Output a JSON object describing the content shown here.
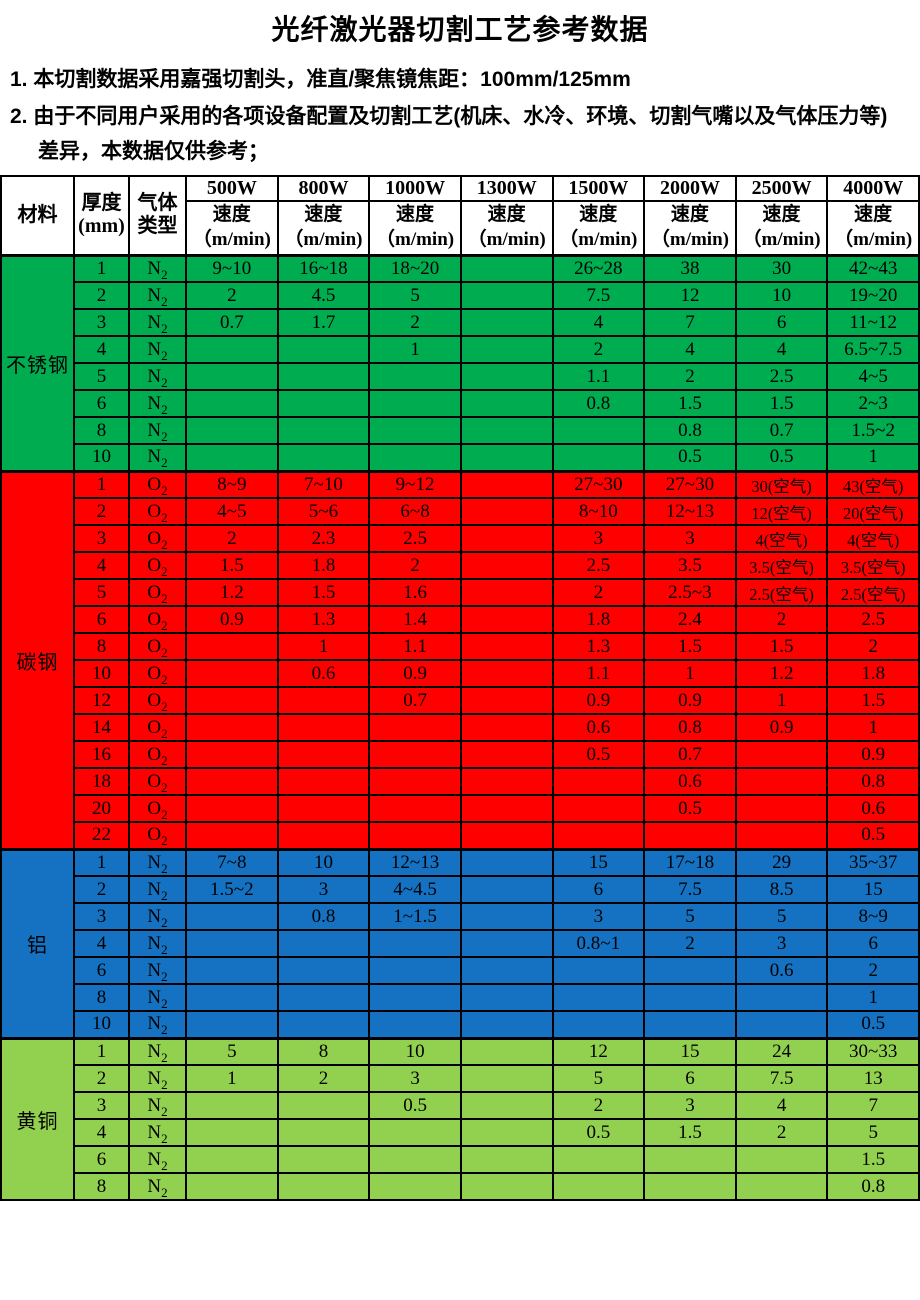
{
  "title": "光纤激光器切割工艺参考数据",
  "notes": [
    "1. 本切割数据采用嘉强切割头，准直/聚焦镜焦距：100mm/125mm",
    "2. 由于不同用户采用的各项设备配置及切割工艺(机床、水冷、环境、切割气嘴以及气体压力等) 差异，本数据仅供参考；"
  ],
  "table": {
    "header": {
      "material": "材料",
      "thickness_line1": "厚度",
      "thickness_line2": "(mm)",
      "gas_line1": "气体",
      "gas_line2": "类型",
      "powers": [
        "500W",
        "800W",
        "1000W",
        "1300W",
        "1500W",
        "2000W",
        "2500W",
        "4000W"
      ],
      "speed_label": "速度",
      "speed_unit": "（m/min)"
    },
    "sections": [
      {
        "material": "不锈钢",
        "color": "#00AC50",
        "gas": "N2",
        "rows": [
          {
            "t": "1",
            "v": [
              "9~10",
              "16~18",
              "18~20",
              "",
              "26~28",
              "38",
              "30",
              "42~43"
            ]
          },
          {
            "t": "2",
            "v": [
              "2",
              "4.5",
              "5",
              "",
              "7.5",
              "12",
              "10",
              "19~20"
            ]
          },
          {
            "t": "3",
            "v": [
              "0.7",
              "1.7",
              "2",
              "",
              "4",
              "7",
              "6",
              "11~12"
            ]
          },
          {
            "t": "4",
            "v": [
              "",
              "",
              "1",
              "",
              "2",
              "4",
              "4",
              "6.5~7.5"
            ]
          },
          {
            "t": "5",
            "v": [
              "",
              "",
              "",
              "",
              "1.1",
              "2",
              "2.5",
              "4~5"
            ]
          },
          {
            "t": "6",
            "v": [
              "",
              "",
              "",
              "",
              "0.8",
              "1.5",
              "1.5",
              "2~3"
            ]
          },
          {
            "t": "8",
            "v": [
              "",
              "",
              "",
              "",
              "",
              "0.8",
              "0.7",
              "1.5~2"
            ]
          },
          {
            "t": "10",
            "v": [
              "",
              "",
              "",
              "",
              "",
              "0.5",
              "0.5",
              "1"
            ]
          }
        ]
      },
      {
        "material": "碳钢",
        "color": "#FF0000",
        "gas": "O2",
        "rows": [
          {
            "t": "1",
            "v": [
              "8~9",
              "7~10",
              "9~12",
              "",
              "27~30",
              "27~30",
              "30(空气)",
              "43(空气)"
            ]
          },
          {
            "t": "2",
            "v": [
              "4~5",
              "5~6",
              "6~8",
              "",
              "8~10",
              "12~13",
              "12(空气)",
              "20(空气)"
            ]
          },
          {
            "t": "3",
            "v": [
              "2",
              "2.3",
              "2.5",
              "",
              "3",
              "3",
              "4(空气)",
              "4(空气)"
            ]
          },
          {
            "t": "4",
            "v": [
              "1.5",
              "1.8",
              "2",
              "",
              "2.5",
              "3.5",
              "3.5(空气)",
              "3.5(空气)"
            ]
          },
          {
            "t": "5",
            "v": [
              "1.2",
              "1.5",
              "1.6",
              "",
              "2",
              "2.5~3",
              "2.5(空气)",
              "2.5(空气)"
            ]
          },
          {
            "t": "6",
            "v": [
              "0.9",
              "1.3",
              "1.4",
              "",
              "1.8",
              "2.4",
              "2",
              "2.5"
            ]
          },
          {
            "t": "8",
            "v": [
              "",
              "1",
              "1.1",
              "",
              "1.3",
              "1.5",
              "1.5",
              "2"
            ]
          },
          {
            "t": "10",
            "v": [
              "",
              "0.6",
              "0.9",
              "",
              "1.1",
              "1",
              "1.2",
              "1.8"
            ]
          },
          {
            "t": "12",
            "v": [
              "",
              "",
              "0.7",
              "",
              "0.9",
              "0.9",
              "1",
              "1.5"
            ]
          },
          {
            "t": "14",
            "v": [
              "",
              "",
              "",
              "",
              "0.6",
              "0.8",
              "0.9",
              "1"
            ]
          },
          {
            "t": "16",
            "v": [
              "",
              "",
              "",
              "",
              "0.5",
              "0.7",
              "",
              "0.9"
            ]
          },
          {
            "t": "18",
            "v": [
              "",
              "",
              "",
              "",
              "",
              "0.6",
              "",
              "0.8"
            ]
          },
          {
            "t": "20",
            "v": [
              "",
              "",
              "",
              "",
              "",
              "0.5",
              "",
              "0.6"
            ]
          },
          {
            "t": "22",
            "v": [
              "",
              "",
              "",
              "",
              "",
              "",
              "",
              "0.5"
            ]
          }
        ]
      },
      {
        "material": "铝",
        "color": "#1572C2",
        "gas": "N2",
        "rows": [
          {
            "t": "1",
            "v": [
              "7~8",
              "10",
              "12~13",
              "",
              "15",
              "17~18",
              "29",
              "35~37"
            ]
          },
          {
            "t": "2",
            "v": [
              "1.5~2",
              "3",
              "4~4.5",
              "",
              "6",
              "7.5",
              "8.5",
              "15"
            ]
          },
          {
            "t": "3",
            "v": [
              "",
              "0.8",
              "1~1.5",
              "",
              "3",
              "5",
              "5",
              "8~9"
            ]
          },
          {
            "t": "4",
            "v": [
              "",
              "",
              "",
              "",
              "0.8~1",
              "2",
              "3",
              "6"
            ]
          },
          {
            "t": "6",
            "v": [
              "",
              "",
              "",
              "",
              "",
              "",
              "0.6",
              "2"
            ]
          },
          {
            "t": "8",
            "v": [
              "",
              "",
              "",
              "",
              "",
              "",
              "",
              "1"
            ]
          },
          {
            "t": "10",
            "v": [
              "",
              "",
              "",
              "",
              "",
              "",
              "",
              "0.5"
            ]
          }
        ]
      },
      {
        "material": "黄铜",
        "color": "#92D050",
        "gas": "N2",
        "rows": [
          {
            "t": "1",
            "v": [
              "5",
              "8",
              "10",
              "",
              "12",
              "15",
              "24",
              "30~33"
            ]
          },
          {
            "t": "2",
            "v": [
              "1",
              "2",
              "3",
              "",
              "5",
              "6",
              "7.5",
              "13"
            ]
          },
          {
            "t": "3",
            "v": [
              "",
              "",
              "0.5",
              "",
              "2",
              "3",
              "4",
              "7"
            ]
          },
          {
            "t": "4",
            "v": [
              "",
              "",
              "",
              "",
              "0.5",
              "1.5",
              "2",
              "5"
            ]
          },
          {
            "t": "6",
            "v": [
              "",
              "",
              "",
              "",
              "",
              "",
              "",
              "1.5"
            ]
          },
          {
            "t": "8",
            "v": [
              "",
              "",
              "",
              "",
              "",
              "",
              "",
              "0.8"
            ]
          }
        ]
      }
    ]
  }
}
